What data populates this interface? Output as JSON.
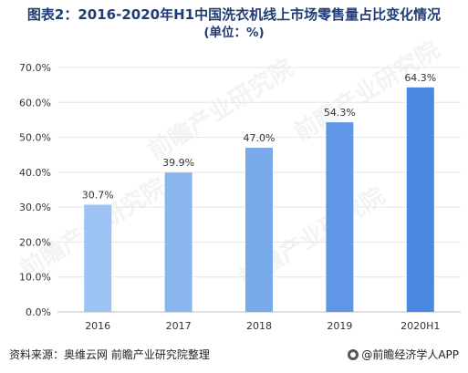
{
  "title_line1": "图表2：2016-2020年H1中国洗衣机线上市场零售量占比变化情况",
  "title_line2": "(单位：%)",
  "source": "资料来源：奥维云网 前瞻产业研究院整理",
  "brand": "@前瞻经济学人APP",
  "watermark": "前瞻产业研究院",
  "colors": {
    "title": "#1f3c74",
    "bar_gradient": [
      "#9cc3f3",
      "#8ab6ef",
      "#77a9eb",
      "#5f97e6",
      "#4b88e2"
    ],
    "axis": "#bfbfbf",
    "grid": "#e6e6e6"
  },
  "chart_data": {
    "type": "bar",
    "categories": [
      "2016",
      "2017",
      "2018",
      "2019",
      "2020H1"
    ],
    "values": [
      30.7,
      39.9,
      47.0,
      54.3,
      64.3
    ],
    "value_labels": [
      "30.7%",
      "39.9%",
      "47.0%",
      "54.3%",
      "64.3%"
    ],
    "y_ticks": [
      "0.0%",
      "10.0%",
      "20.0%",
      "30.0%",
      "40.0%",
      "50.0%",
      "60.0%",
      "70.0%"
    ],
    "ylim": [
      0,
      70
    ],
    "grid": true,
    "legend": "none"
  }
}
